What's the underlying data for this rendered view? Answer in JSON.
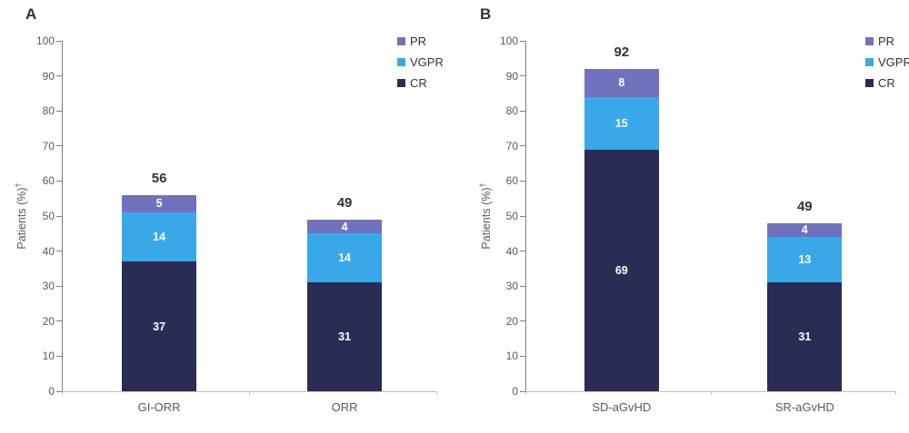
{
  "figure": {
    "background": "#ffffff"
  },
  "colors": {
    "PR": "#7172BE",
    "VGPR": "#39A8E9",
    "CR": "#2B2C54",
    "axis_line": "#7f7f7f",
    "baseline": "#BFBFBF",
    "tick_label": "#595959",
    "category_label": "#595959",
    "total_label": "#333333",
    "segment_label": "#ffffff",
    "panel_letter": "#333333",
    "legend_label": "#333333"
  },
  "legend": {
    "items": [
      {
        "label": "PR",
        "series": "PR"
      },
      {
        "label": "VGPR",
        "series": "VGPR"
      },
      {
        "label": "CR",
        "series": "CR"
      }
    ]
  },
  "chart_data": [
    {
      "type": "bar",
      "stacked": true,
      "panel_label": "A",
      "ylabel": "Patients (%)",
      "ylabel_sup": "†",
      "ylim": [
        0,
        100
      ],
      "ytick_step": 10,
      "grid": false,
      "legend_position": "top-right",
      "categories": [
        "GI-ORR",
        "ORR"
      ],
      "series": [
        {
          "name": "CR",
          "values": [
            37,
            31
          ]
        },
        {
          "name": "VGPR",
          "values": [
            14,
            14
          ]
        },
        {
          "name": "PR",
          "values": [
            5,
            4
          ]
        }
      ],
      "totals": [
        56,
        49
      ]
    },
    {
      "type": "bar",
      "stacked": true,
      "panel_label": "B",
      "ylabel": "Patients (%)",
      "ylabel_sup": "†",
      "ylim": [
        0,
        100
      ],
      "ytick_step": 10,
      "grid": false,
      "legend_position": "top-right",
      "categories": [
        "SD-aGvHD",
        "SR-aGvHD"
      ],
      "series": [
        {
          "name": "CR",
          "values": [
            69,
            31
          ]
        },
        {
          "name": "VGPR",
          "values": [
            15,
            13
          ]
        },
        {
          "name": "PR",
          "values": [
            8,
            4
          ]
        }
      ],
      "totals": [
        92,
        49
      ]
    }
  ]
}
